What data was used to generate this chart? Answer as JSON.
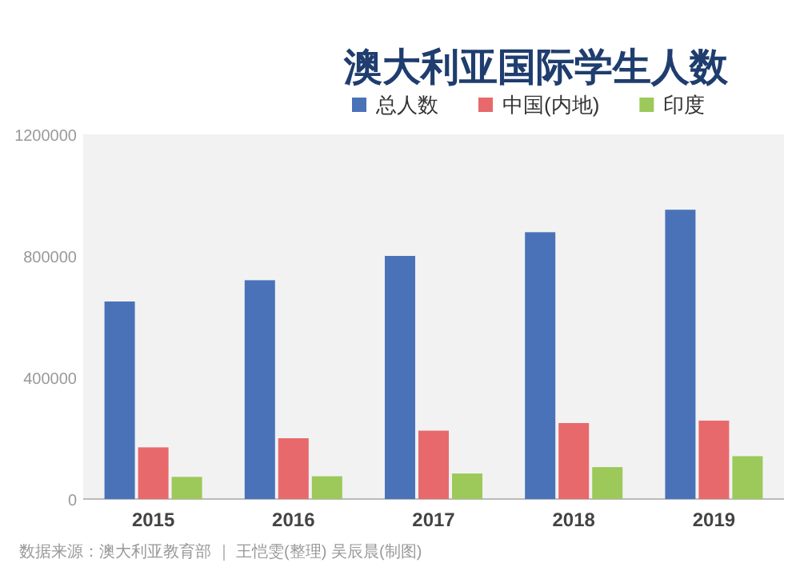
{
  "chart_data": {
    "type": "bar",
    "title": "澳大利亚国际学生人数",
    "categories": [
      "2015",
      "2016",
      "2017",
      "2018",
      "2019"
    ],
    "series": [
      {
        "name": "总人数",
        "color": "#4a72b8",
        "values": [
          650000,
          720000,
          800000,
          878000,
          952000
        ]
      },
      {
        "name": "中国(内地)",
        "color": "#e8696b",
        "values": [
          170000,
          200000,
          225000,
          250000,
          258000
        ]
      },
      {
        "name": "印度",
        "color": "#9cc95a",
        "values": [
          73000,
          75000,
          84000,
          105000,
          141000
        ]
      }
    ],
    "ylim": [
      0,
      1200000
    ],
    "yticks": [
      0,
      400000,
      800000,
      1200000
    ],
    "legend": "top right",
    "annotations": [
      "数据来源：澳大利亚教育部 ｜ 王恺雯(整理) 吴辰晨(制图)"
    ]
  }
}
